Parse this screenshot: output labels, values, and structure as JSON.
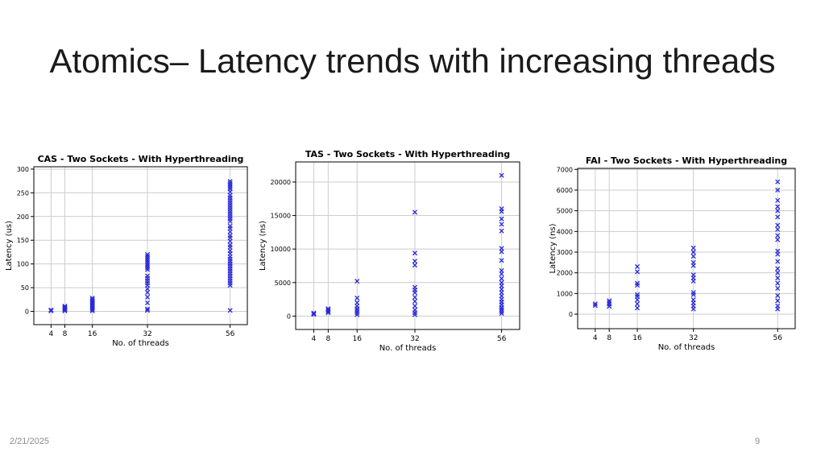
{
  "slide": {
    "title": "Atomics– Latency trends with increasing threads",
    "date": "2/21/2025",
    "page_number": "9"
  },
  "colors": {
    "marker": "#2a2ad8",
    "grid": "#cccccc",
    "axis": "#000000"
  },
  "chart_data": [
    {
      "type": "scatter",
      "title": "CAS - Two Sockets - With Hyperthreading",
      "xlabel": "No. of threads",
      "ylabel": "Latency (us)",
      "xticks": [
        4,
        8,
        16,
        32,
        56
      ],
      "yticks": [
        0,
        50,
        100,
        150,
        200,
        250,
        300
      ],
      "xlim": [
        -1,
        61
      ],
      "ylim": [
        -28,
        305
      ],
      "grid": true,
      "marker": "x",
      "series": [
        {
          "x": 4,
          "y": [
            1,
            2,
            3
          ]
        },
        {
          "x": 8,
          "y": [
            1,
            3,
            5,
            7,
            9,
            11
          ]
        },
        {
          "x": 16,
          "y": [
            1,
            4,
            7,
            10,
            13,
            16,
            19,
            22,
            25,
            28
          ]
        },
        {
          "x": 32,
          "y": [
            2,
            5,
            18,
            30,
            40,
            48,
            55,
            60,
            65,
            70,
            75,
            88,
            92,
            96,
            100,
            104,
            108,
            112,
            116,
            120
          ]
        },
        {
          "x": 56,
          "y": [
            2,
            55,
            60,
            65,
            70,
            75,
            80,
            85,
            90,
            95,
            100,
            105,
            110,
            115,
            122,
            128,
            135,
            140,
            148,
            155,
            160,
            168,
            175,
            180,
            190,
            195,
            200,
            205,
            210,
            215,
            220,
            225,
            230,
            235,
            240,
            245,
            252,
            258,
            262,
            266,
            270,
            274
          ]
        }
      ]
    },
    {
      "type": "scatter",
      "title": "TAS - Two Sockets - With Hyperthreading",
      "xlabel": "No. of threads",
      "ylabel": "Latency (ns)",
      "xticks": [
        4,
        8,
        16,
        32,
        56
      ],
      "yticks": [
        0,
        5000,
        10000,
        15000,
        20000
      ],
      "xlim": [
        -1,
        61
      ],
      "ylim": [
        -2000,
        23000
      ],
      "grid": true,
      "marker": "x",
      "series": [
        {
          "x": 4,
          "y": [
            250,
            350,
            450
          ]
        },
        {
          "x": 8,
          "y": [
            500,
            700,
            900,
            1100
          ]
        },
        {
          "x": 16,
          "y": [
            200,
            500,
            800,
            1100,
            1500,
            2000,
            2700,
            5200
          ]
        },
        {
          "x": 32,
          "y": [
            200,
            500,
            900,
            1500,
            2200,
            2800,
            3500,
            3900,
            4300,
            7600,
            8200,
            9400,
            15500
          ]
        },
        {
          "x": 56,
          "y": [
            400,
            700,
            1000,
            1300,
            1700,
            2100,
            2500,
            3000,
            3500,
            4000,
            4500,
            5000,
            5600,
            6300,
            6800,
            8300,
            9600,
            10100,
            12700,
            13700,
            14500,
            15600,
            16000,
            21000
          ]
        }
      ]
    },
    {
      "type": "scatter",
      "title": "FAI - Two Sockets - With Hyperthreading",
      "xlabel": "No. of threads",
      "ylabel": "Latency (ns)",
      "xticks": [
        4,
        8,
        16,
        32,
        56
      ],
      "yticks": [
        0,
        1000,
        2000,
        3000,
        4000,
        5000,
        6000,
        7000
      ],
      "xlim": [
        -1,
        61
      ],
      "ylim": [
        -700,
        7050
      ],
      "grid": true,
      "marker": "x",
      "series": [
        {
          "x": 4,
          "y": [
            420,
            500
          ]
        },
        {
          "x": 8,
          "y": [
            380,
            480,
            560,
            650
          ]
        },
        {
          "x": 16,
          "y": [
            300,
            500,
            700,
            850,
            950,
            1400,
            1500,
            2050,
            2300
          ]
        },
        {
          "x": 32,
          "y": [
            250,
            400,
            550,
            700,
            950,
            1050,
            1600,
            1750,
            1900,
            2350,
            2500,
            2800,
            3000,
            3200
          ]
        },
        {
          "x": 56,
          "y": [
            250,
            400,
            650,
            900,
            1250,
            1500,
            1750,
            2000,
            2200,
            2550,
            2900,
            3050,
            3600,
            3800,
            4100,
            4300,
            4700,
            5000,
            5200,
            5500,
            6000,
            6400
          ]
        }
      ]
    }
  ]
}
